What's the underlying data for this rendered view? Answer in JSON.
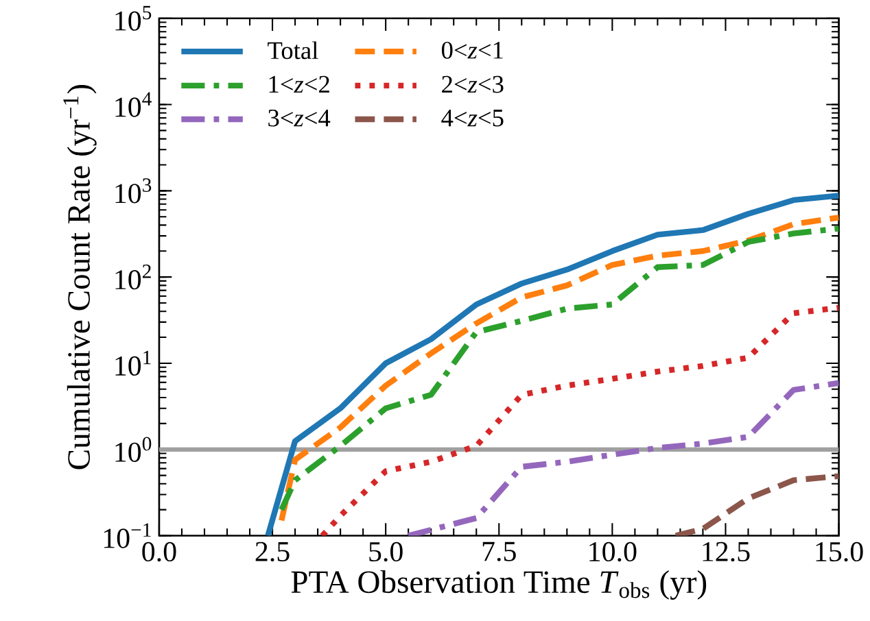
{
  "chart_data": {
    "type": "line",
    "xlabel": "PTA Observation Time *T*$_{obs}$ (yr)",
    "ylabel": "Cumulative Count Rate (yr$^{−1}$)",
    "log": "y",
    "grid": false,
    "legend": "top left",
    "xlim": [
      0,
      15
    ],
    "ylim": [
      0.1,
      100000
    ],
    "xticks": [
      {
        "value": 0,
        "label": "0.0"
      },
      2.5,
      {
        "value": 5,
        "label": "5.0"
      },
      7.5,
      {
        "value": 10,
        "label": "10.0"
      },
      12.5,
      {
        "value": 15,
        "label": "15.0"
      }
    ],
    "yticks": [
      {
        "value": 0.1,
        "label": "10$^{−1}$"
      },
      {
        "value": 1,
        "label": "10$^{0}$"
      },
      {
        "value": 10,
        "label": "10$^{1}$"
      },
      {
        "value": 100,
        "label": "10$^{2}$"
      },
      {
        "value": 1000,
        "label": "10$^{3}$"
      },
      {
        "value": 10000,
        "label": "10$^{4}$"
      },
      {
        "value": 100000,
        "label": "10$^{5}$"
      }
    ],
    "ref_lines": [
      {
        "axis": "y",
        "value": 1,
        "color": "#a0a0a0"
      }
    ],
    "series": [
      {
        "name": "Total",
        "color": "#1f77b4",
        "line_style": "solid",
        "x": [
          2.4,
          3,
          4,
          5,
          6,
          7,
          8,
          9,
          10,
          11,
          12,
          13,
          14,
          15
        ],
        "values": [
          0.1,
          1.25,
          3.0,
          10,
          19,
          48,
          84,
          122,
          200,
          310,
          350,
          540,
          780,
          880
        ]
      },
      {
        "name": "0<*z*<1",
        "color": "#ff7f0e",
        "line_style": "dashed",
        "x": [
          2.7,
          3,
          4,
          5,
          6,
          7,
          8,
          9,
          10,
          11,
          12,
          13,
          14,
          15
        ],
        "values": [
          0.15,
          0.76,
          1.8,
          5.5,
          13,
          29,
          58,
          80,
          138,
          177,
          200,
          265,
          410,
          490
        ]
      },
      {
        "name": "1<*z*<2",
        "color": "#2ca02c",
        "line_style": "dashdot",
        "x": [
          2.7,
          3,
          4,
          5,
          6,
          7,
          8,
          9,
          10,
          11,
          12,
          13,
          14,
          15
        ],
        "values": [
          0.2,
          0.44,
          1.1,
          3.0,
          4.3,
          23,
          31,
          43,
          48,
          130,
          138,
          255,
          320,
          365
        ]
      },
      {
        "name": "2<*z*<3",
        "color": "#d62728",
        "line_style": "dotted",
        "x": [
          3.6,
          4,
          5,
          6,
          7,
          8,
          9,
          10,
          11,
          12,
          13,
          14,
          15
        ],
        "values": [
          0.1,
          0.17,
          0.56,
          0.72,
          1.1,
          4.3,
          5.5,
          6.6,
          8,
          9.3,
          11.6,
          38,
          44
        ]
      },
      {
        "name": "3<*z*<4",
        "color": "#9467bd",
        "line_style": "dashdot",
        "x": [
          5.5,
          7,
          8,
          9,
          10,
          11,
          12,
          13,
          14,
          15
        ],
        "values": [
          0.1,
          0.16,
          0.63,
          0.72,
          0.87,
          1.04,
          1.17,
          1.4,
          4.9,
          5.9
        ]
      },
      {
        "name": "4<*z*<5",
        "color": "#8c564b",
        "line_style": "dashed",
        "x": [
          11.4,
          12,
          13,
          14,
          15
        ],
        "values": [
          0.1,
          0.12,
          0.27,
          0.44,
          0.49
        ]
      }
    ]
  }
}
